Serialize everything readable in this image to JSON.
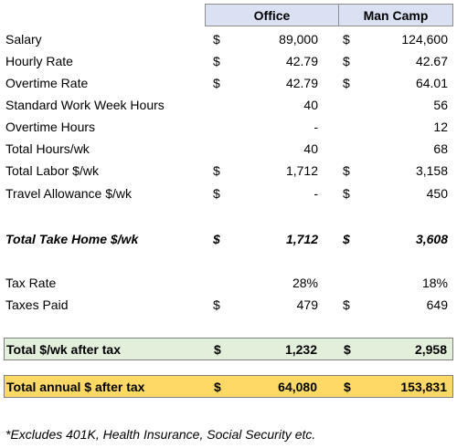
{
  "table": {
    "headers": [
      "Office",
      "Man Camp"
    ],
    "rows": [
      {
        "label": "Salary",
        "cells": [
          {
            "currency": "$",
            "value": "89,000"
          },
          {
            "currency": "$",
            "value": "124,600"
          }
        ]
      },
      {
        "label": "Hourly Rate",
        "cells": [
          {
            "currency": "$",
            "value": "42.79"
          },
          {
            "currency": "$",
            "value": "42.67"
          }
        ]
      },
      {
        "label": "Overtime Rate",
        "cells": [
          {
            "currency": "$",
            "value": "42.79"
          },
          {
            "currency": "$",
            "value": "64.01"
          }
        ]
      },
      {
        "label": "Standard Work Week Hours",
        "cells": [
          {
            "value": "40"
          },
          {
            "value": "56"
          }
        ]
      },
      {
        "label": "Overtime Hours",
        "cells": [
          {
            "value": "-"
          },
          {
            "value": "12"
          }
        ]
      },
      {
        "label": "Total Hours/wk",
        "cells": [
          {
            "value": "40"
          },
          {
            "value": "68"
          }
        ]
      },
      {
        "label": "Total Labor $/wk",
        "cells": [
          {
            "currency": "$",
            "value": "1,712"
          },
          {
            "currency": "$",
            "value": "3,158"
          }
        ]
      },
      {
        "label": "Travel Allowance $/wk",
        "cells": [
          {
            "currency": "$",
            "value": "-"
          },
          {
            "currency": "$",
            "value": "450"
          }
        ]
      },
      {
        "label": "Total Take Home $/wk",
        "cells": [
          {
            "currency": "$",
            "value": "1,712"
          },
          {
            "currency": "$",
            "value": "3,608"
          }
        ]
      },
      {
        "label": "Tax Rate",
        "cells": [
          {
            "value": "28%"
          },
          {
            "value": "18%"
          }
        ]
      },
      {
        "label": "Taxes Paid",
        "cells": [
          {
            "currency": "$",
            "value": "479"
          },
          {
            "currency": "$",
            "value": "649"
          }
        ]
      },
      {
        "label": "Total $/wk after tax",
        "cells": [
          {
            "currency": "$",
            "value": "1,232"
          },
          {
            "currency": "$",
            "value": "2,958"
          }
        ]
      },
      {
        "label": "Total annual $ after tax",
        "cells": [
          {
            "currency": "$",
            "value": "64,080"
          },
          {
            "currency": "$",
            "value": "153,831"
          }
        ]
      }
    ],
    "footnote": "*Excludes 401K, Health Insurance, Social Security etc."
  }
}
